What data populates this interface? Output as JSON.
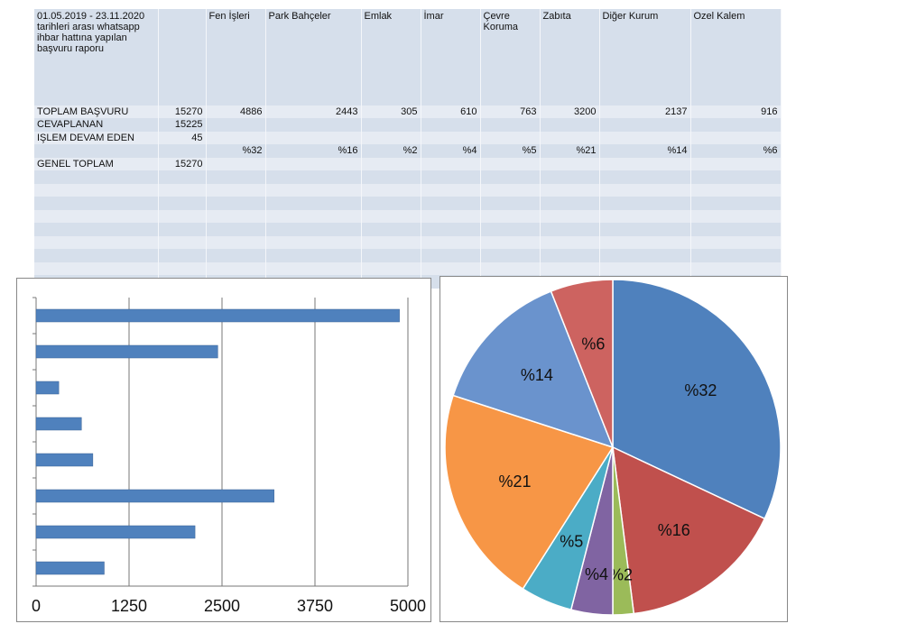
{
  "table": {
    "title": "01.05.2019 - 23.11.2020 tarihleri arası whatsapp ihbar hattına yapılan başvuru raporu",
    "columns": [
      "Fen İşleri",
      "Park Bahçeler",
      "Emlak",
      "İmar",
      "Çevre Koruma",
      "Zabıta",
      "Diğer Kurum",
      "Ozel Kalem"
    ],
    "rows": [
      {
        "label": "TOPLAM BAŞVURU",
        "total": 15270,
        "values": [
          4886,
          2443,
          305,
          610,
          763,
          3200,
          2137,
          916
        ]
      },
      {
        "label": "CEVAPLANAN",
        "total": 15225
      },
      {
        "label": "IŞLEM DEVAM EDEN",
        "total": 45
      },
      {
        "values": [
          "%32",
          "%16",
          "%2",
          "%4",
          "%5",
          "%21",
          "%14",
          "%6"
        ]
      },
      {
        "label": "GENEL TOPLAM",
        "total": 15270
      }
    ]
  },
  "chart_data": [
    {
      "type": "bar",
      "orientation": "horizontal",
      "categories": [
        null,
        null,
        null,
        null,
        null,
        null,
        null,
        null
      ],
      "values": [
        4886,
        2443,
        305,
        610,
        763,
        3200,
        2137,
        916
      ],
      "color": "#4f81bd",
      "xlim": [
        0,
        5000
      ],
      "xticks": [
        0,
        1250,
        2500,
        3750,
        5000
      ],
      "grid": true
    },
    {
      "type": "pie",
      "values": [
        32,
        16,
        2,
        4,
        5,
        21,
        14,
        6
      ],
      "value_labels": [
        "%32",
        "%16",
        "%2",
        "%4",
        "%5",
        "%21",
        "%14",
        "%6"
      ],
      "colors": [
        "#4f81bd",
        "#c0504d",
        "#9bbb59",
        "#8064a2",
        "#4bacc6",
        "#f79646",
        "#6a93cd",
        "#cd6360"
      ]
    }
  ]
}
